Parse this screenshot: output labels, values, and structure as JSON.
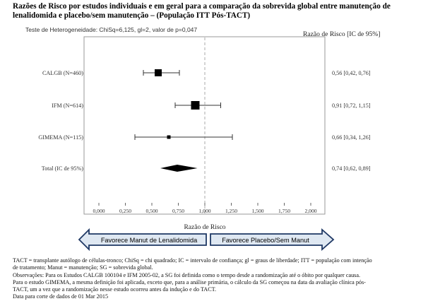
{
  "title": "Razões de Risco por estudos individuais e em geral para a comparação da sobrevida global entre manutenção de lenalidomida e placebo/sem manutenção – (População ITT Pós-TACT)",
  "heterogeneity_label": "Teste de Heterogeneidade: ChiSq=6,125, gl=2, valor de p=0,047",
  "ratio_header": "Razão de Risco [IC de 95%]",
  "chart_data": {
    "type": "forest",
    "xlabel": "Razão de Risco",
    "xlim": [
      0.0,
      2.0
    ],
    "ticks": [
      0.0,
      0.25,
      0.5,
      0.75,
      1.0,
      1.25,
      1.5,
      1.75,
      2.0
    ],
    "tick_labels": [
      "0,000",
      "0,250",
      "0,500",
      "0,750",
      "1,000",
      "1,250",
      "1,500",
      "1,750",
      "2,000"
    ],
    "reference_line": 1.0,
    "studies": [
      {
        "label": "CALGB (N=460)",
        "hr": 0.56,
        "lo": 0.42,
        "hi": 0.76,
        "marker": "square",
        "size": "medium",
        "text": "0,56 [0,42, 0,76]"
      },
      {
        "label": "IFM (N=614)",
        "hr": 0.91,
        "lo": 0.72,
        "hi": 1.15,
        "marker": "square",
        "size": "large",
        "text": "0,91 [0,72, 1,15]"
      },
      {
        "label": "GIMEMA (N=115)",
        "hr": 0.66,
        "lo": 0.34,
        "hi": 1.26,
        "marker": "square",
        "size": "small",
        "text": "0,66 [0,34, 1,26]"
      },
      {
        "label": "Total (IC de 95%)",
        "hr": 0.74,
        "lo": 0.62,
        "hi": 0.89,
        "marker": "diamond",
        "text": "0,74 [0,62, 0,89]"
      }
    ]
  },
  "arrows": {
    "left": "Favorece Manut de Lenalidomida",
    "right": "Favorece Placebo/Sem Manut"
  },
  "notes": [
    "TACT = transplante autólogo de células-tronco; ChiSq = chi quadrado; IC = intervalo de confiança; gl = graus de liberdade; ITT = população com intenção",
    "de tratamento; Manut = manutenção; SG = sobrevida global.",
    "Observações: Para os Estudos CALGB 100104 e IFM 2005-02, a SG foi definida como o tempo desde a randomização até o óbito por qualquer causa.",
    "Para o estudo GIMEMA, a mesma definição foi aplicada, exceto que, para a análise primária, o cálculo da SG começou na data da avaliação clínica pós-",
    "TACT, um a vez que a randomização nesse estudo ocorreu antes da indução e do TACT.",
    "Data para corte de dados de 01 Mar 2015"
  ],
  "colors": {
    "arrow_fill": "#dfe8f2",
    "arrow_stroke": "#1f3864",
    "frame": "#999999",
    "ref_line": "#aaaaaa"
  }
}
